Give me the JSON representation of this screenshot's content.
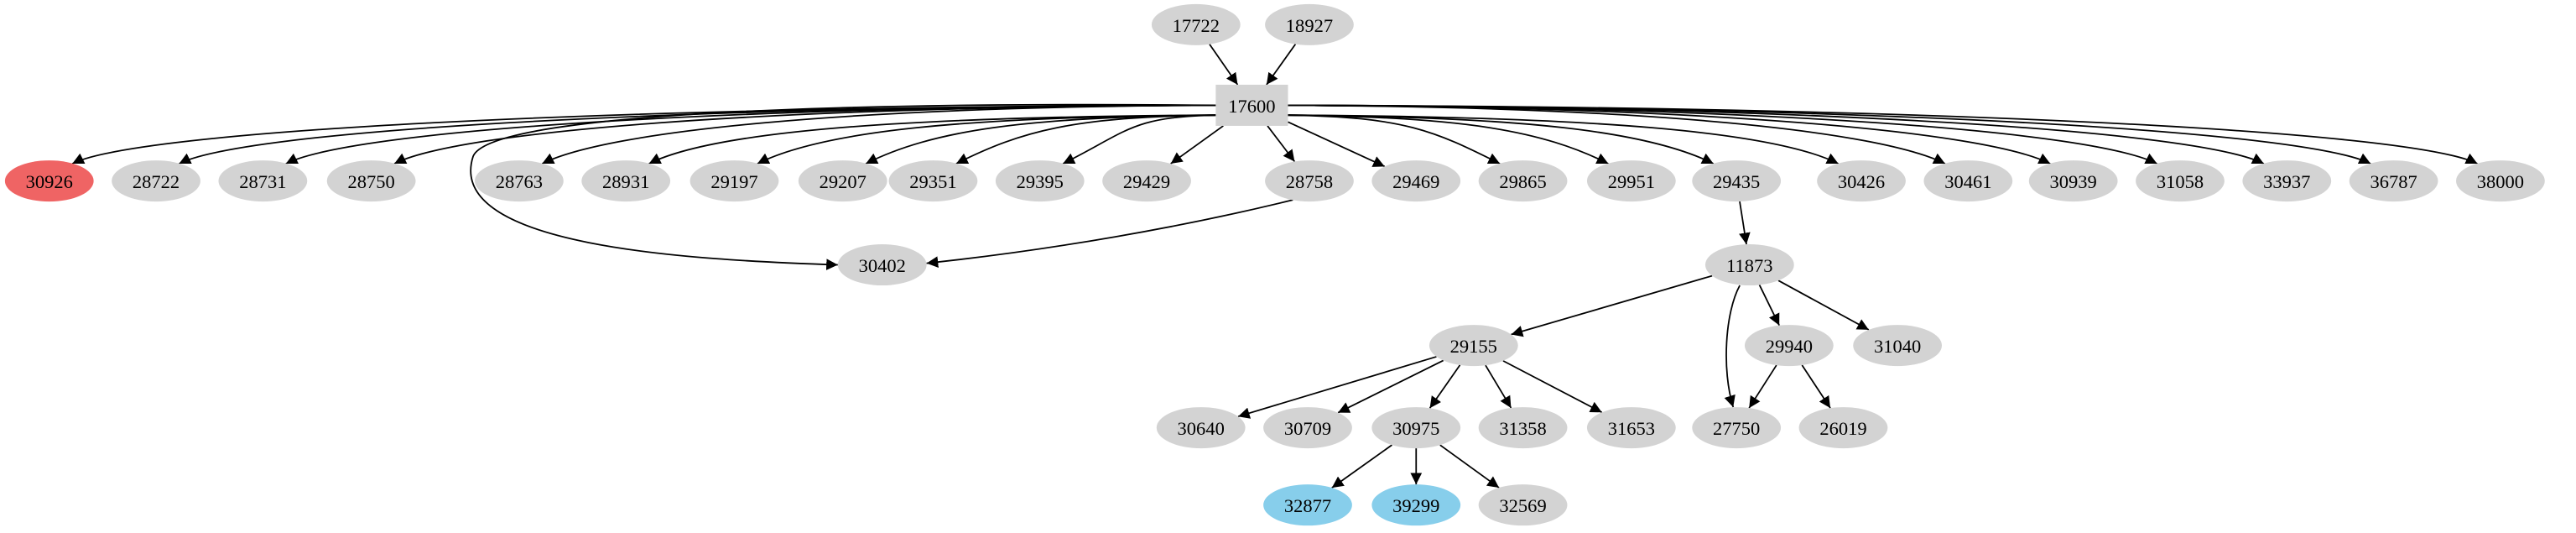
{
  "graph": {
    "colors": {
      "default_fill": "#d3d3d3",
      "highlight_red": "#ef6464",
      "highlight_blue": "#87ceeb",
      "edge": "#000000"
    },
    "nodes": [
      {
        "id": "17722",
        "shape": "ellipse",
        "fill": "default_fill"
      },
      {
        "id": "18927",
        "shape": "ellipse",
        "fill": "default_fill"
      },
      {
        "id": "17600",
        "shape": "box",
        "fill": "default_fill"
      },
      {
        "id": "30926",
        "shape": "ellipse",
        "fill": "highlight_red"
      },
      {
        "id": "28722",
        "shape": "ellipse",
        "fill": "default_fill"
      },
      {
        "id": "28731",
        "shape": "ellipse",
        "fill": "default_fill"
      },
      {
        "id": "28750",
        "shape": "ellipse",
        "fill": "default_fill"
      },
      {
        "id": "28763",
        "shape": "ellipse",
        "fill": "default_fill"
      },
      {
        "id": "28931",
        "shape": "ellipse",
        "fill": "default_fill"
      },
      {
        "id": "29197",
        "shape": "ellipse",
        "fill": "default_fill"
      },
      {
        "id": "29207",
        "shape": "ellipse",
        "fill": "default_fill"
      },
      {
        "id": "29351",
        "shape": "ellipse",
        "fill": "default_fill"
      },
      {
        "id": "29395",
        "shape": "ellipse",
        "fill": "default_fill"
      },
      {
        "id": "29429",
        "shape": "ellipse",
        "fill": "default_fill"
      },
      {
        "id": "28758",
        "shape": "ellipse",
        "fill": "default_fill"
      },
      {
        "id": "29469",
        "shape": "ellipse",
        "fill": "default_fill"
      },
      {
        "id": "29865",
        "shape": "ellipse",
        "fill": "default_fill"
      },
      {
        "id": "29951",
        "shape": "ellipse",
        "fill": "default_fill"
      },
      {
        "id": "29435",
        "shape": "ellipse",
        "fill": "default_fill"
      },
      {
        "id": "30426",
        "shape": "ellipse",
        "fill": "default_fill"
      },
      {
        "id": "30461",
        "shape": "ellipse",
        "fill": "default_fill"
      },
      {
        "id": "30939",
        "shape": "ellipse",
        "fill": "default_fill"
      },
      {
        "id": "31058",
        "shape": "ellipse",
        "fill": "default_fill"
      },
      {
        "id": "33937",
        "shape": "ellipse",
        "fill": "default_fill"
      },
      {
        "id": "36787",
        "shape": "ellipse",
        "fill": "default_fill"
      },
      {
        "id": "38000",
        "shape": "ellipse",
        "fill": "default_fill"
      },
      {
        "id": "30402",
        "shape": "ellipse",
        "fill": "default_fill"
      },
      {
        "id": "11873",
        "shape": "ellipse",
        "fill": "default_fill"
      },
      {
        "id": "29155",
        "shape": "ellipse",
        "fill": "default_fill"
      },
      {
        "id": "29940",
        "shape": "ellipse",
        "fill": "default_fill"
      },
      {
        "id": "31040",
        "shape": "ellipse",
        "fill": "default_fill"
      },
      {
        "id": "30640",
        "shape": "ellipse",
        "fill": "default_fill"
      },
      {
        "id": "30709",
        "shape": "ellipse",
        "fill": "default_fill"
      },
      {
        "id": "30975",
        "shape": "ellipse",
        "fill": "default_fill"
      },
      {
        "id": "31358",
        "shape": "ellipse",
        "fill": "default_fill"
      },
      {
        "id": "31653",
        "shape": "ellipse",
        "fill": "default_fill"
      },
      {
        "id": "27750",
        "shape": "ellipse",
        "fill": "default_fill"
      },
      {
        "id": "26019",
        "shape": "ellipse",
        "fill": "default_fill"
      },
      {
        "id": "32877",
        "shape": "ellipse",
        "fill": "highlight_blue"
      },
      {
        "id": "39299",
        "shape": "ellipse",
        "fill": "highlight_blue"
      },
      {
        "id": "32569",
        "shape": "ellipse",
        "fill": "default_fill"
      }
    ],
    "edges": [
      [
        "17722",
        "17600"
      ],
      [
        "18927",
        "17600"
      ],
      [
        "17600",
        "30926"
      ],
      [
        "17600",
        "28722"
      ],
      [
        "17600",
        "28731"
      ],
      [
        "17600",
        "28750"
      ],
      [
        "17600",
        "30402"
      ],
      [
        "17600",
        "28763"
      ],
      [
        "17600",
        "28931"
      ],
      [
        "17600",
        "29197"
      ],
      [
        "17600",
        "29207"
      ],
      [
        "17600",
        "29351"
      ],
      [
        "17600",
        "29395"
      ],
      [
        "17600",
        "29429"
      ],
      [
        "17600",
        "28758"
      ],
      [
        "17600",
        "29469"
      ],
      [
        "17600",
        "29865"
      ],
      [
        "17600",
        "29951"
      ],
      [
        "17600",
        "29435"
      ],
      [
        "17600",
        "30426"
      ],
      [
        "17600",
        "30461"
      ],
      [
        "17600",
        "30939"
      ],
      [
        "17600",
        "31058"
      ],
      [
        "17600",
        "33937"
      ],
      [
        "17600",
        "36787"
      ],
      [
        "17600",
        "38000"
      ],
      [
        "28758",
        "30402"
      ],
      [
        "29435",
        "11873"
      ],
      [
        "11873",
        "29155"
      ],
      [
        "11873",
        "27750"
      ],
      [
        "11873",
        "29940"
      ],
      [
        "11873",
        "31040"
      ],
      [
        "29155",
        "30640"
      ],
      [
        "29155",
        "30709"
      ],
      [
        "29155",
        "30975"
      ],
      [
        "29155",
        "31358"
      ],
      [
        "29155",
        "31653"
      ],
      [
        "29940",
        "27750"
      ],
      [
        "29940",
        "26019"
      ],
      [
        "30975",
        "32877"
      ],
      [
        "30975",
        "39299"
      ],
      [
        "30975",
        "32569"
      ]
    ]
  }
}
